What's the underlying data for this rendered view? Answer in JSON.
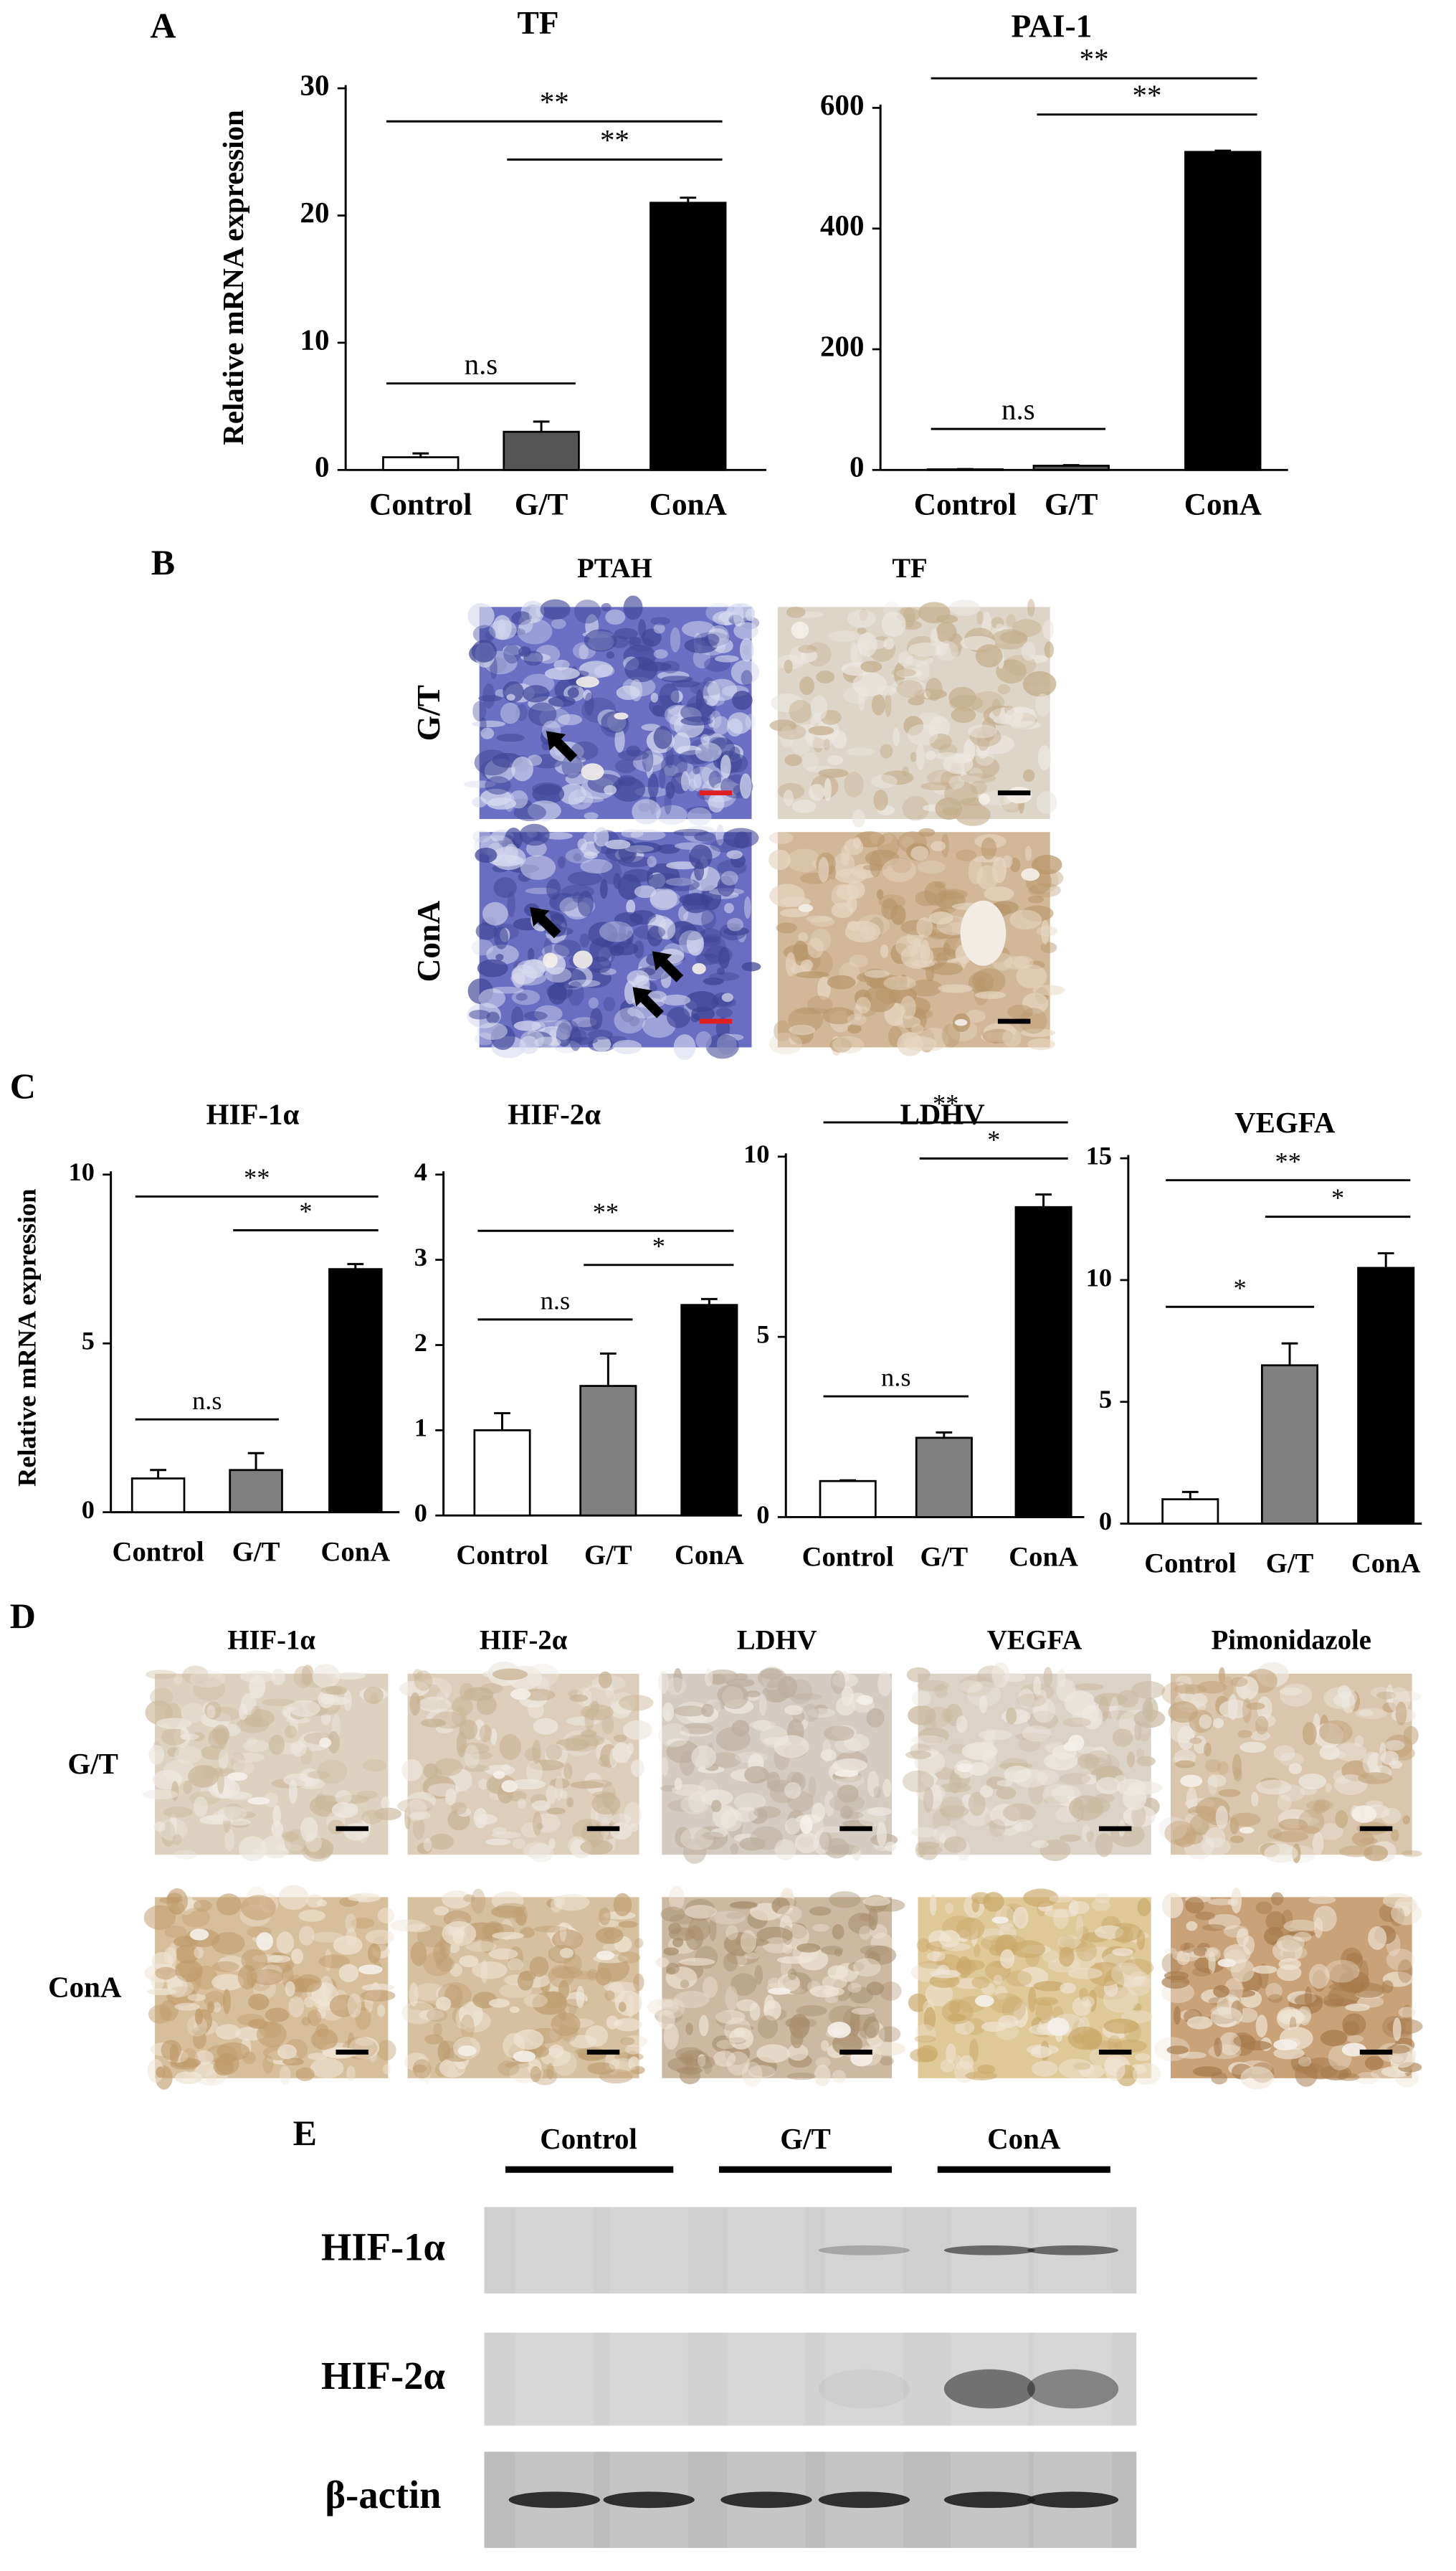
{
  "panel_labels": [
    "A",
    "B",
    "C",
    "D",
    "E"
  ],
  "chart_data": [
    {
      "type": "bar",
      "title": "TF",
      "y_label": "Relative mRNA expression",
      "categories": [
        "Control",
        "G/T",
        "ConA"
      ],
      "values": [
        1.0,
        3.0,
        21.0
      ],
      "errors": [
        0.3,
        0.8,
        0.4
      ],
      "colors": [
        "#ffffff",
        "#555555",
        "#000000"
      ],
      "ylim": [
        0,
        30
      ],
      "yticks": [
        0,
        10,
        20,
        30
      ],
      "annotations": [
        {
          "text": "n.s",
          "from": 0,
          "to": 1
        },
        {
          "text": "**",
          "from": 1,
          "to": 2
        },
        {
          "text": "**",
          "from": 0,
          "to": 2
        }
      ]
    },
    {
      "type": "bar",
      "title": "PAI-1",
      "categories": [
        "Control",
        "G/T",
        "ConA"
      ],
      "values": [
        1,
        7,
        527
      ],
      "errors": [
        0.5,
        1,
        2
      ],
      "colors": [
        "#ffffff",
        "#555555",
        "#000000"
      ],
      "ylim": [
        0,
        600
      ],
      "yticks": [
        0,
        200,
        400,
        600
      ],
      "annotations": [
        {
          "text": "n.s",
          "from": 0,
          "to": 1
        },
        {
          "text": "**",
          "from": 1,
          "to": 2
        },
        {
          "text": "**",
          "from": 0,
          "to": 2
        }
      ]
    },
    {
      "type": "bar",
      "title": "HIF-1α",
      "y_label": "Relative mRNA expression",
      "categories": [
        "Control",
        "G/T",
        "ConA"
      ],
      "values": [
        1.0,
        1.25,
        7.2
      ],
      "errors": [
        0.25,
        0.5,
        0.15
      ],
      "colors": [
        "#ffffff",
        "#808080",
        "#000000"
      ],
      "ylim": [
        0,
        10
      ],
      "yticks": [
        0,
        5,
        10
      ],
      "annotations": [
        {
          "text": "n.s",
          "from": 0,
          "to": 1
        },
        {
          "text": "*",
          "from": 1,
          "to": 2
        },
        {
          "text": "**",
          "from": 0,
          "to": 2
        }
      ]
    },
    {
      "type": "bar",
      "title": "HIF-2α",
      "categories": [
        "Control",
        "G/T",
        "ConA"
      ],
      "values": [
        1.0,
        1.52,
        2.47
      ],
      "errors": [
        0.2,
        0.38,
        0.07
      ],
      "colors": [
        "#ffffff",
        "#808080",
        "#000000"
      ],
      "ylim": [
        0,
        4
      ],
      "yticks": [
        0,
        1,
        2,
        3,
        4
      ],
      "annotations": [
        {
          "text": "n.s",
          "from": 0,
          "to": 1
        },
        {
          "text": "*",
          "from": 1,
          "to": 2
        },
        {
          "text": "**",
          "from": 0,
          "to": 2
        }
      ]
    },
    {
      "type": "bar",
      "title": "LDHV",
      "categories": [
        "Control",
        "G/T",
        "ConA"
      ],
      "values": [
        1.0,
        2.2,
        8.6
      ],
      "errors": [
        0.02,
        0.15,
        0.35
      ],
      "colors": [
        "#ffffff",
        "#808080",
        "#000000"
      ],
      "ylim": [
        0,
        10
      ],
      "yticks": [
        0,
        5,
        10
      ],
      "annotations": [
        {
          "text": "n.s",
          "from": 0,
          "to": 1
        },
        {
          "text": "*",
          "from": 1,
          "to": 2
        },
        {
          "text": "**",
          "from": 0,
          "to": 2
        }
      ]
    },
    {
      "type": "bar",
      "title": "VEGFA",
      "categories": [
        "Control",
        "G/T",
        "ConA"
      ],
      "values": [
        1.0,
        6.5,
        10.5
      ],
      "errors": [
        0.3,
        0.9,
        0.6
      ],
      "colors": [
        "#ffffff",
        "#808080",
        "#000000"
      ],
      "ylim": [
        0,
        15
      ],
      "yticks": [
        0,
        5,
        10,
        15
      ],
      "annotations": [
        {
          "text": "*",
          "from": 0,
          "to": 1
        },
        {
          "text": "*",
          "from": 1,
          "to": 2
        },
        {
          "text": "**",
          "from": 0,
          "to": 2
        }
      ]
    }
  ],
  "histology_b": {
    "columns": [
      "PTAH",
      "TF"
    ],
    "rows": [
      "G/T",
      "ConA"
    ]
  },
  "histology_d": {
    "columns": [
      "HIF-1α",
      "HIF-2α",
      "LDHV",
      "VEGFA",
      "Pimonidazole"
    ],
    "rows": [
      "G/T",
      "ConA"
    ]
  },
  "western_blot": {
    "groups": [
      "Control",
      "G/T",
      "ConA"
    ],
    "proteins": [
      "HIF-1α",
      "HIF-2α",
      "β-actin"
    ]
  }
}
